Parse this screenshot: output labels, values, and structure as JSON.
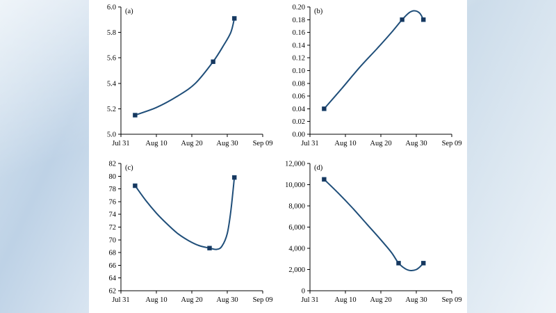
{
  "figure": {
    "background": "#ffffff",
    "axis_color": "#000000",
    "line_color": "#1f4e79",
    "marker_color": "#17375e"
  },
  "chart_data": [
    {
      "type": "line",
      "label": "(a)",
      "xlim": [
        0,
        40
      ],
      "x_ticks": [
        0,
        10,
        20,
        30,
        40
      ],
      "x_tick_labels": [
        "Jul 31",
        "Aug 10",
        "Aug 20",
        "Aug 30",
        "Sep 09"
      ],
      "ylim": [
        5.0,
        6.0
      ],
      "y_ticks": [
        5.0,
        5.2,
        5.4,
        5.6,
        5.8,
        6.0
      ],
      "y_format": "dec1",
      "line_color": "#1f4e79",
      "curve": [
        [
          4,
          5.15
        ],
        [
          10,
          5.21
        ],
        [
          16,
          5.3
        ],
        [
          21,
          5.4
        ],
        [
          26,
          5.57
        ],
        [
          29,
          5.7
        ],
        [
          31,
          5.8
        ],
        [
          32,
          5.91
        ]
      ],
      "markers": [
        [
          4,
          5.15
        ],
        [
          26,
          5.57
        ],
        [
          32,
          5.91
        ]
      ]
    },
    {
      "type": "line",
      "label": "(b)",
      "xlim": [
        0,
        40
      ],
      "x_ticks": [
        0,
        10,
        20,
        30,
        40
      ],
      "x_tick_labels": [
        "Jul 31",
        "Aug 10",
        "Aug 20",
        "Aug 30",
        "Sep 09"
      ],
      "ylim": [
        0.0,
        0.2
      ],
      "y_ticks": [
        0.0,
        0.02,
        0.04,
        0.06,
        0.08,
        0.1,
        0.12,
        0.14,
        0.16,
        0.18,
        0.2
      ],
      "y_format": "dec2",
      "line_color": "#1f4e79",
      "curve": [
        [
          4,
          0.04
        ],
        [
          9,
          0.072
        ],
        [
          14,
          0.105
        ],
        [
          19,
          0.135
        ],
        [
          23,
          0.16
        ],
        [
          26,
          0.18
        ],
        [
          28,
          0.191
        ],
        [
          29.5,
          0.194
        ],
        [
          31,
          0.19
        ],
        [
          32,
          0.18
        ]
      ],
      "markers": [
        [
          4,
          0.04
        ],
        [
          26,
          0.18
        ],
        [
          32,
          0.18
        ]
      ]
    },
    {
      "type": "line",
      "label": "(c)",
      "xlim": [
        0,
        40
      ],
      "x_ticks": [
        0,
        10,
        20,
        30,
        40
      ],
      "x_tick_labels": [
        "Jul 31",
        "Aug 10",
        "Aug 20",
        "Aug 30",
        "Sep 09"
      ],
      "ylim": [
        62,
        82
      ],
      "y_ticks": [
        62,
        64,
        66,
        68,
        70,
        72,
        74,
        76,
        78,
        80,
        82
      ],
      "y_format": "int",
      "line_color": "#1f4e79",
      "curve": [
        [
          4,
          78.5
        ],
        [
          7,
          76.2
        ],
        [
          10,
          74.2
        ],
        [
          13,
          72.5
        ],
        [
          16,
          71.0
        ],
        [
          19,
          69.9
        ],
        [
          22,
          69.1
        ],
        [
          25,
          68.7
        ],
        [
          27,
          68.5
        ],
        [
          28.5,
          69.0
        ],
        [
          30,
          71.0
        ],
        [
          31,
          74.5
        ],
        [
          32,
          79.8
        ]
      ],
      "markers": [
        [
          4,
          78.5
        ],
        [
          25,
          68.7
        ],
        [
          32,
          79.8
        ]
      ]
    },
    {
      "type": "line",
      "label": "(d)",
      "xlim": [
        0,
        40
      ],
      "x_ticks": [
        0,
        10,
        20,
        30,
        40
      ],
      "x_tick_labels": [
        "Jul 31",
        "Aug 10",
        "Aug 20",
        "Aug 30",
        "Sep 09"
      ],
      "ylim": [
        0,
        12000
      ],
      "y_ticks": [
        0,
        2000,
        4000,
        6000,
        8000,
        10000,
        12000
      ],
      "y_format": "comma",
      "line_color": "#1f4e79",
      "curve": [
        [
          4,
          10500
        ],
        [
          8,
          9200
        ],
        [
          12,
          7800
        ],
        [
          16,
          6300
        ],
        [
          20,
          4800
        ],
        [
          23,
          3600
        ],
        [
          25,
          2600
        ],
        [
          27,
          2050
        ],
        [
          28.5,
          1900
        ],
        [
          30,
          2000
        ],
        [
          31,
          2250
        ],
        [
          32,
          2600
        ]
      ],
      "markers": [
        [
          4,
          10500
        ],
        [
          25,
          2600
        ],
        [
          32,
          2600
        ]
      ]
    }
  ]
}
